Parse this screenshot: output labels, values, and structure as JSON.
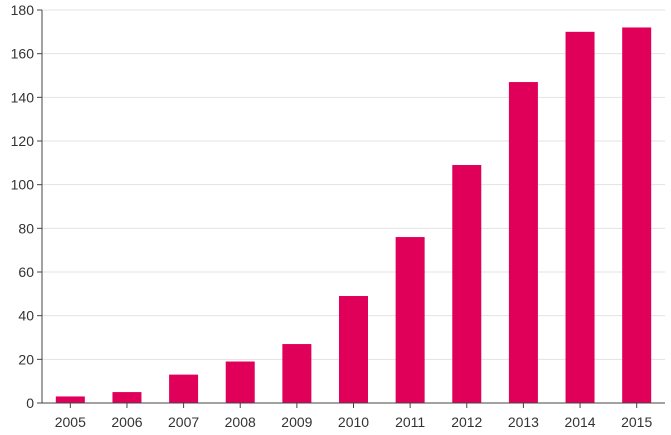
{
  "chart_data": {
    "type": "bar",
    "categories": [
      "2005",
      "2006",
      "2007",
      "2008",
      "2009",
      "2010",
      "2011",
      "2012",
      "2013",
      "2014",
      "2015"
    ],
    "values": [
      3,
      5,
      13,
      19,
      27,
      49,
      76,
      109,
      147,
      170,
      172
    ],
    "title": "",
    "xlabel": "",
    "ylabel": "",
    "ylim": [
      0,
      180
    ],
    "yticks": [
      "0",
      "20",
      "40",
      "60",
      "80",
      "100",
      "120",
      "140",
      "160",
      "180"
    ],
    "grid": true,
    "bar_color": "#e0005a"
  }
}
